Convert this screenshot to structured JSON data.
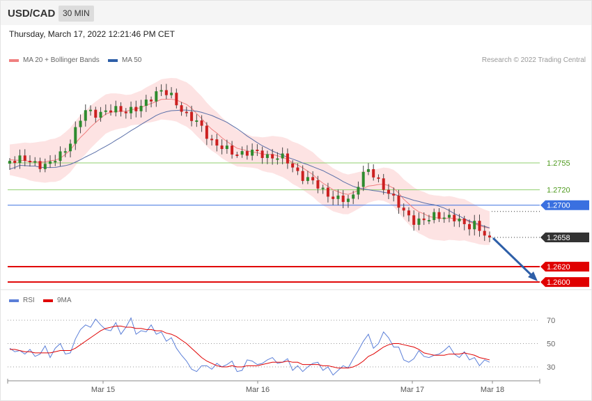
{
  "header": {
    "symbol": "USD/CAD",
    "timeframe": "30 MIN"
  },
  "datetime": "Thursday, March 17, 2022 12:21:46 PM CET",
  "legend": {
    "ma20_label": "MA 20 + Bollinger Bands",
    "ma20_color": "#f08080",
    "ma50_label": "MA 50",
    "ma50_color": "#2e5fa8"
  },
  "credit": "Research © 2022 Trading Central",
  "rsi_legend": {
    "rsi_label": "RSI",
    "rsi_color": "#5b7fd8",
    "ma_label": "9MA",
    "ma_color": "#e00000"
  },
  "chart_data": {
    "type": "candlestick",
    "x_ticks": [
      "Mar 15",
      "Mar 16",
      "Mar 17",
      "Mar 18"
    ],
    "price_levels": [
      {
        "label": "1.2755",
        "value": 1.2755,
        "style": "support-resistance",
        "color": "#8fcf6e",
        "label_color": "#4e9a1e"
      },
      {
        "label": "1.2720",
        "value": 1.272,
        "style": "support-resistance",
        "color": "#8fcf6e",
        "label_color": "#4e9a1e"
      },
      {
        "label": "1.2700",
        "value": 1.27,
        "style": "pivot",
        "color": "#3a70e0"
      },
      {
        "label": "1.2658",
        "value": 1.2658,
        "style": "last-price",
        "color": "#333333"
      },
      {
        "label": "1.2620",
        "value": 1.262,
        "style": "target",
        "color": "#e00000"
      },
      {
        "label": "1.2600",
        "value": 1.26,
        "style": "target",
        "color": "#e00000"
      }
    ],
    "rsi": {
      "levels": [
        70,
        50,
        30
      ],
      "rsi_values": [
        46,
        43,
        44,
        41,
        45,
        39,
        41,
        48,
        38,
        46,
        50,
        41,
        42,
        54,
        62,
        66,
        64,
        71,
        66,
        62,
        61,
        68,
        58,
        64,
        72,
        58,
        61,
        60,
        66,
        58,
        60,
        52,
        55,
        46,
        40,
        35,
        28,
        26,
        31,
        31,
        28,
        33,
        30,
        32,
        35,
        26,
        27,
        36,
        35,
        32,
        33,
        36,
        38,
        33,
        34,
        37,
        27,
        31,
        26,
        30,
        33,
        34,
        27,
        30,
        23,
        27,
        31,
        29,
        37,
        44,
        52,
        58,
        46,
        50,
        60,
        55,
        47,
        47,
        36,
        34,
        37,
        44,
        39,
        38,
        40,
        41,
        44,
        48,
        41,
        38,
        43,
        36,
        38,
        31,
        36,
        34
      ],
      "ma_values": [
        45,
        45,
        44,
        43,
        43,
        42,
        42,
        42,
        42,
        43,
        44,
        44,
        44,
        46,
        49,
        52,
        55,
        58,
        61,
        63,
        64,
        65,
        65,
        64,
        64,
        63,
        63,
        62,
        62,
        61,
        61,
        59,
        58,
        56,
        53,
        50,
        46,
        42,
        38,
        35,
        33,
        31,
        30,
        30,
        31,
        30,
        30,
        31,
        31,
        31,
        32,
        33,
        34,
        34,
        34,
        35,
        34,
        34,
        32,
        32,
        32,
        32,
        31,
        31,
        30,
        29,
        29,
        29,
        30,
        32,
        35,
        39,
        41,
        44,
        47,
        49,
        50,
        50,
        49,
        48,
        47,
        45,
        42,
        41,
        40,
        40,
        40,
        41,
        41,
        41,
        42,
        41,
        40,
        38,
        37,
        36
      ]
    }
  }
}
